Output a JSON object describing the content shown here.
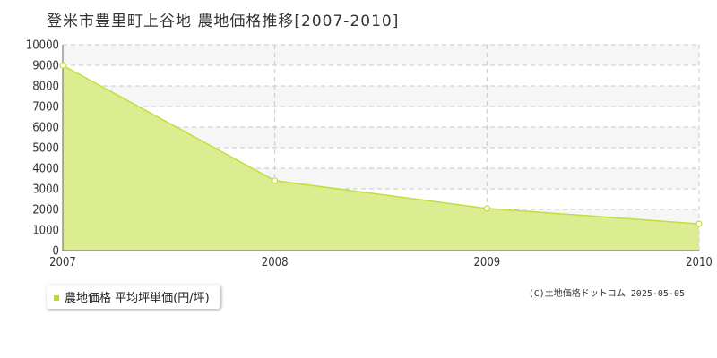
{
  "colors": {
    "area_fill": "#dcec90",
    "area_line": "#bfe03c",
    "legend_swatch": "#b5d935",
    "grid": "#c8c8c8",
    "plot_band_a": "#f6f6f6",
    "plot_band_b": "#ffffff"
  },
  "legend": {
    "position": "bottom-left"
  },
  "copyright": "(C)土地価格ドットコム 2025-05-05",
  "chart_data": {
    "type": "area",
    "title": "登米市豊里町上谷地 農地価格推移[2007-2010]",
    "xlabel": "",
    "ylabel": "",
    "x": [
      2007,
      2008,
      2009,
      2010
    ],
    "xticks": [
      "2007",
      "2008",
      "2009",
      "2010"
    ],
    "ylim": [
      0,
      10000
    ],
    "yticks": [
      "0",
      "1000",
      "2000",
      "3000",
      "4000",
      "5000",
      "6000",
      "7000",
      "8000",
      "9000",
      "10000"
    ],
    "grid": true,
    "series": [
      {
        "name": "農地価格 平均坪単価(円/坪)",
        "values": [
          9000,
          3400,
          2050,
          1300
        ]
      }
    ]
  }
}
